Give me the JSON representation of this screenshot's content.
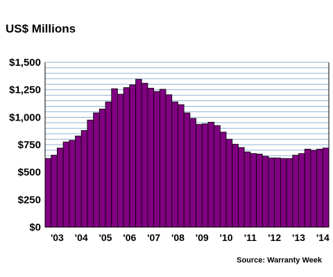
{
  "chart_data": {
    "type": "bar",
    "title": "US$ Millions",
    "source": "Source: Warranty Week",
    "ylim": [
      0,
      1500
    ],
    "ytick_values": [
      0,
      250,
      500,
      750,
      1000,
      1250,
      1500
    ],
    "ytick_labels": [
      "$0",
      "$250",
      "$500",
      "$750",
      "$1,000",
      "$1,250",
      "$1,500"
    ],
    "xtick_labels": [
      "'03",
      "'04",
      "'05",
      "'06",
      "'07",
      "'08",
      "'09",
      "'10",
      "'11",
      "'12",
      "'13",
      "'14"
    ],
    "categories": [
      "2003 Q1",
      "2003 Q2",
      "2003 Q3",
      "2003 Q4",
      "2004 Q1",
      "2004 Q2",
      "2004 Q3",
      "2004 Q4",
      "2005 Q1",
      "2005 Q2",
      "2005 Q3",
      "2005 Q4",
      "2006 Q1",
      "2006 Q2",
      "2006 Q3",
      "2006 Q4",
      "2007 Q1",
      "2007 Q2",
      "2007 Q3",
      "2007 Q4",
      "2008 Q1",
      "2008 Q2",
      "2008 Q3",
      "2008 Q4",
      "2009 Q1",
      "2009 Q2",
      "2009 Q3",
      "2009 Q4",
      "2010 Q1",
      "2010 Q2",
      "2010 Q3",
      "2010 Q4",
      "2011 Q1",
      "2011 Q2",
      "2011 Q3",
      "2011 Q4",
      "2012 Q1",
      "2012 Q2",
      "2012 Q3",
      "2012 Q4",
      "2013 Q1",
      "2013 Q2",
      "2013 Q3",
      "2013 Q4",
      "2014 Q1",
      "2014 Q2",
      "2014 Q3"
    ],
    "values": [
      625,
      655,
      720,
      775,
      790,
      830,
      880,
      975,
      1040,
      1075,
      1140,
      1260,
      1210,
      1270,
      1295,
      1345,
      1310,
      1265,
      1235,
      1255,
      1205,
      1140,
      1115,
      1040,
      990,
      935,
      940,
      955,
      925,
      865,
      800,
      755,
      725,
      685,
      670,
      665,
      645,
      630,
      630,
      625,
      625,
      655,
      670,
      710,
      700,
      710,
      720
    ],
    "grid": true,
    "colors": {
      "bar_fill": "#800080",
      "bar_stroke": "#000000",
      "plot_background": "#ffffff",
      "grid_line": "#8fb0d0",
      "axis": "#000000"
    }
  }
}
